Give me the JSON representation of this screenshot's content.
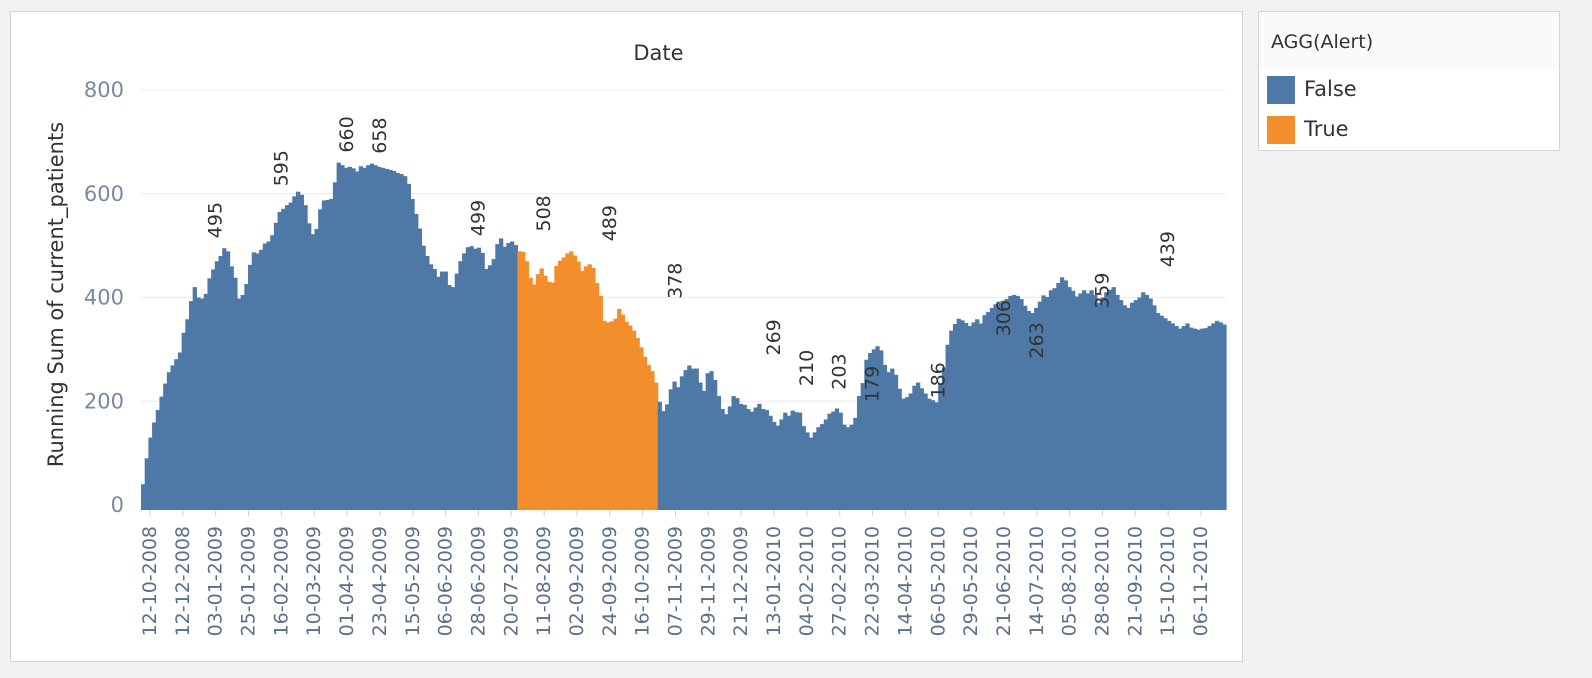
{
  "legend": {
    "title": "AGG(Alert)",
    "items": [
      {
        "label": "False",
        "color": "#4e79a7"
      },
      {
        "label": "True",
        "color": "#f28e2b"
      }
    ]
  },
  "chart_data": {
    "type": "bar",
    "title": "Date",
    "xlabel": "",
    "ylabel": "Running Sum of current_patients",
    "ylim": [
      0,
      800
    ],
    "yticks": [
      0,
      200,
      400,
      600,
      800
    ],
    "grid": true,
    "legend_position": "right",
    "x_tick_labels": [
      "12-10-2008",
      "12-12-2008",
      "03-01-2009",
      "25-01-2009",
      "16-02-2009",
      "10-03-2009",
      "01-04-2009",
      "23-04-2009",
      "15-05-2009",
      "06-06-2009",
      "28-06-2009",
      "20-07-2009",
      "11-08-2009",
      "02-09-2009",
      "24-09-2009",
      "16-10-2009",
      "07-11-2009",
      "29-11-2009",
      "21-12-2009",
      "13-01-2010",
      "04-02-2010",
      "27-02-2010",
      "22-03-2010",
      "14-04-2010",
      "06-05-2010",
      "29-05-2010",
      "21-06-2010",
      "14-07-2010",
      "05-08-2010",
      "28-08-2010",
      "21-09-2010",
      "15-10-2010",
      "06-11-2010"
    ],
    "series": [
      {
        "name": "False",
        "color": "#4e79a7"
      },
      {
        "name": "True",
        "color": "#f28e2b"
      }
    ],
    "alert_flags": [
      0,
      0,
      0,
      0,
      0,
      0,
      0,
      0,
      0,
      0,
      0,
      0,
      0,
      0,
      0,
      0,
      0,
      0,
      0,
      0,
      0,
      0,
      0,
      0,
      0,
      0,
      0,
      0,
      0,
      0,
      0,
      0,
      0,
      0,
      0,
      0,
      0,
      0,
      0,
      0,
      0,
      0,
      0,
      0,
      0,
      0,
      0,
      0,
      0,
      0,
      0,
      0,
      0,
      0,
      0,
      0,
      0,
      0,
      0,
      0,
      0,
      0,
      0,
      0,
      0,
      0,
      0,
      0,
      0,
      0,
      0,
      0,
      0,
      0,
      0,
      0,
      0,
      0,
      0,
      0,
      0,
      0,
      0,
      0,
      0,
      0,
      0,
      0,
      0,
      0,
      0,
      0,
      0,
      0,
      0,
      0,
      0,
      0,
      0,
      0,
      0,
      0,
      1,
      1,
      1,
      1,
      1,
      1,
      1,
      1,
      1,
      1,
      1,
      1,
      1,
      1,
      1,
      1,
      1,
      1,
      1,
      1,
      1,
      1,
      1,
      1,
      1,
      1,
      1,
      1,
      1,
      1,
      1,
      1,
      1,
      1,
      1,
      1,
      1,
      1,
      0,
      0,
      0,
      0,
      0,
      0,
      0,
      0,
      0,
      0,
      0,
      0,
      0,
      0,
      0,
      0,
      0,
      0,
      0,
      0,
      0,
      0,
      0,
      0,
      0,
      0,
      0,
      0,
      0,
      0,
      0,
      0,
      0,
      0,
      0,
      0,
      0,
      0,
      0,
      0,
      0,
      0,
      0,
      0,
      0,
      0,
      0,
      0,
      0,
      0,
      0,
      0,
      0,
      0,
      0,
      0,
      0,
      0,
      0,
      0,
      0,
      0,
      0,
      0,
      0,
      0,
      0,
      0,
      0,
      0,
      0,
      0,
      0,
      0,
      0,
      0,
      0,
      0,
      0,
      0,
      0,
      0,
      0,
      0,
      0,
      0,
      0,
      0,
      0,
      0,
      0,
      0,
      0,
      0,
      0,
      0,
      0,
      0,
      0,
      0,
      0,
      0,
      0,
      0,
      0,
      0,
      0,
      0,
      0,
      0,
      0,
      0,
      0,
      0,
      0,
      0,
      0,
      0,
      0,
      0,
      0,
      0,
      0,
      0,
      0,
      0,
      0,
      0,
      0,
      0,
      0,
      0,
      0,
      0,
      0,
      0,
      0,
      0,
      0,
      0,
      0,
      0,
      0,
      0,
      0,
      0,
      0,
      0,
      0,
      0,
      0,
      0,
      0,
      0,
      0,
      0,
      0,
      0,
      0,
      0,
      0,
      0,
      0,
      0,
      0,
      0,
      0,
      0,
      0,
      0,
      0,
      0,
      0,
      0,
      0,
      0,
      0,
      0,
      0,
      0,
      0,
      0,
      0,
      0,
      0,
      0,
      0,
      0,
      0,
      0,
      0,
      0,
      0,
      0,
      0,
      0,
      0,
      0,
      0,
      0,
      0,
      0,
      0,
      0,
      0,
      0,
      0,
      0,
      0,
      0,
      0,
      0,
      0,
      0,
      0,
      0,
      0,
      0,
      0,
      0,
      0,
      0,
      0,
      0,
      0,
      0,
      0,
      0,
      0,
      0,
      0,
      0,
      0,
      0,
      0,
      0,
      0,
      0,
      0,
      0,
      0,
      0,
      0,
      0,
      0,
      0,
      0,
      0,
      0,
      0,
      0,
      0,
      0,
      0,
      0,
      0,
      0,
      0,
      0,
      0,
      0,
      0,
      0,
      0,
      0,
      0,
      0,
      0,
      0,
      0,
      0,
      0,
      0,
      0,
      0,
      0,
      0,
      0,
      0,
      0,
      0,
      0,
      0,
      0,
      0,
      0,
      0,
      0,
      0,
      0,
      0,
      0,
      0,
      0,
      0,
      0,
      0,
      0,
      0,
      0,
      0,
      0,
      0,
      0,
      0,
      0,
      0,
      0,
      0,
      0,
      0,
      0,
      0,
      0,
      0,
      0,
      0,
      0,
      0,
      0,
      0,
      0,
      0,
      0,
      0,
      0,
      0,
      0,
      0,
      0,
      0,
      0,
      0,
      0,
      0,
      0,
      0,
      0,
      0,
      0,
      0,
      0,
      0,
      0,
      0,
      0,
      0,
      0,
      0,
      0,
      0,
      0,
      0,
      0,
      0,
      0,
      0,
      0,
      0,
      0,
      0,
      0,
      0,
      0,
      0,
      0,
      0,
      0,
      0,
      0,
      0,
      0,
      0,
      0,
      0,
      0,
      0,
      0,
      0,
      0,
      0,
      0,
      0,
      0,
      0,
      0,
      0,
      0,
      0,
      0,
      0,
      0,
      0,
      0,
      0,
      0,
      0,
      0,
      0,
      0,
      0,
      0,
      0,
      0,
      0,
      0,
      0,
      0,
      0,
      0,
      0,
      0,
      0
    ],
    "values": [
      40,
      90,
      130,
      159,
      183,
      209,
      234,
      256,
      269,
      281,
      294,
      332,
      358,
      393,
      420,
      400,
      398,
      407,
      437,
      454,
      470,
      480,
      495,
      489,
      460,
      438,
      398,
      405,
      426,
      463,
      487,
      485,
      492,
      504,
      508,
      520,
      544,
      565,
      571,
      578,
      583,
      595,
      604,
      598,
      578,
      543,
      522,
      532,
      570,
      587,
      588,
      590,
      622,
      660,
      655,
      650,
      652,
      649,
      643,
      653,
      650,
      655,
      658,
      655,
      652,
      650,
      648,
      646,
      644,
      640,
      638,
      634,
      619,
      590,
      561,
      533,
      500,
      480,
      464,
      455,
      440,
      450,
      450,
      424,
      420,
      446,
      470,
      485,
      497,
      499,
      494,
      496,
      486,
      455,
      462,
      474,
      503,
      514,
      498,
      505,
      508,
      501,
      489,
      488,
      470,
      438,
      425,
      445,
      456,
      442,
      430,
      429,
      461,
      471,
      477,
      485,
      489,
      481,
      469,
      451,
      460,
      464,
      457,
      428,
      403,
      355,
      352,
      354,
      359,
      378,
      367,
      353,
      346,
      336,
      322,
      304,
      286,
      270,
      258,
      236,
      199,
      181,
      194,
      223,
      238,
      227,
      248,
      260,
      269,
      263,
      263,
      236,
      220,
      254,
      258,
      241,
      210,
      185,
      175,
      190,
      210,
      206,
      195,
      193,
      185,
      180,
      188,
      195,
      185,
      183,
      172,
      160,
      153,
      165,
      178,
      172,
      182,
      179,
      178,
      152,
      140,
      130,
      140,
      150,
      156,
      165,
      176,
      180,
      186,
      178,
      155,
      150,
      155,
      168,
      210,
      235,
      280,
      293,
      300,
      306,
      298,
      270,
      256,
      263,
      251,
      224,
      205,
      208,
      215,
      230,
      236,
      225,
      215,
      205,
      202,
      198,
      234,
      265,
      309,
      336,
      349,
      359,
      356,
      351,
      345,
      352,
      358,
      350,
      366,
      372,
      380,
      387,
      392,
      394,
      397,
      403,
      405,
      403,
      397,
      384,
      374,
      370,
      380,
      392,
      404,
      401,
      414,
      418,
      428,
      439,
      433,
      420,
      413,
      402,
      408,
      414,
      408,
      414,
      405,
      390,
      400,
      410,
      415,
      420,
      405,
      395,
      385,
      380,
      390,
      395,
      400,
      410,
      405,
      398,
      385,
      370,
      365,
      360,
      355,
      350,
      345,
      340,
      345,
      350,
      342,
      340,
      338,
      340,
      341,
      345,
      350,
      355,
      352,
      348
    ],
    "data_labels": [
      {
        "x": "03-01-2009",
        "value": 495
      },
      {
        "x": "16-02-2009",
        "value": 595
      },
      {
        "x": "01-04-2009",
        "value": 660
      },
      {
        "x": "23-04-2009",
        "value": 658
      },
      {
        "x": "28-06-2009",
        "value": 499
      },
      {
        "x": "11-08-2009",
        "value": 508
      },
      {
        "x": "24-09-2009",
        "value": 489
      },
      {
        "x": "07-11-2009",
        "value": 378
      },
      {
        "x": "13-01-2010",
        "value": 269
      },
      {
        "x": "04-02-2010",
        "value": 210
      },
      {
        "x": "27-02-2010",
        "value": 203
      },
      {
        "x": "22-03-2010",
        "value": 179
      },
      {
        "x": "06-05-2010",
        "value": 186
      },
      {
        "x": "21-06-2010",
        "value": 306
      },
      {
        "x": "14-07-2010",
        "value": 263
      },
      {
        "x": "28-08-2010",
        "value": 359
      },
      {
        "x": "15-10-2010",
        "value": 439
      }
    ]
  }
}
